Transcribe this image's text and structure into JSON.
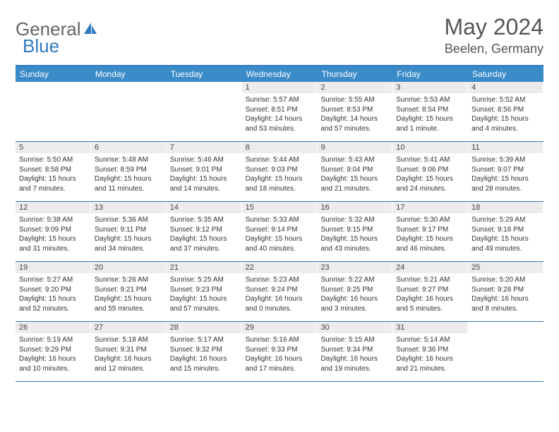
{
  "brand": {
    "part1": "General",
    "part2": "Blue"
  },
  "title": "May 2024",
  "location": "Beelen, Germany",
  "colors": {
    "header_bg": "#3b8bc9",
    "header_border": "#2f7abf",
    "daynum_bg": "#ececec",
    "text": "#333333"
  },
  "dow": [
    "Sunday",
    "Monday",
    "Tuesday",
    "Wednesday",
    "Thursday",
    "Friday",
    "Saturday"
  ],
  "weeks": [
    [
      {
        "n": "",
        "sr": "",
        "ss": "",
        "dl": ""
      },
      {
        "n": "",
        "sr": "",
        "ss": "",
        "dl": ""
      },
      {
        "n": "",
        "sr": "",
        "ss": "",
        "dl": ""
      },
      {
        "n": "1",
        "sr": "Sunrise: 5:57 AM",
        "ss": "Sunset: 8:51 PM",
        "dl": "Daylight: 14 hours and 53 minutes."
      },
      {
        "n": "2",
        "sr": "Sunrise: 5:55 AM",
        "ss": "Sunset: 8:53 PM",
        "dl": "Daylight: 14 hours and 57 minutes."
      },
      {
        "n": "3",
        "sr": "Sunrise: 5:53 AM",
        "ss": "Sunset: 8:54 PM",
        "dl": "Daylight: 15 hours and 1 minute."
      },
      {
        "n": "4",
        "sr": "Sunrise: 5:52 AM",
        "ss": "Sunset: 8:56 PM",
        "dl": "Daylight: 15 hours and 4 minutes."
      }
    ],
    [
      {
        "n": "5",
        "sr": "Sunrise: 5:50 AM",
        "ss": "Sunset: 8:58 PM",
        "dl": "Daylight: 15 hours and 7 minutes."
      },
      {
        "n": "6",
        "sr": "Sunrise: 5:48 AM",
        "ss": "Sunset: 8:59 PM",
        "dl": "Daylight: 15 hours and 11 minutes."
      },
      {
        "n": "7",
        "sr": "Sunrise: 5:46 AM",
        "ss": "Sunset: 9:01 PM",
        "dl": "Daylight: 15 hours and 14 minutes."
      },
      {
        "n": "8",
        "sr": "Sunrise: 5:44 AM",
        "ss": "Sunset: 9:03 PM",
        "dl": "Daylight: 15 hours and 18 minutes."
      },
      {
        "n": "9",
        "sr": "Sunrise: 5:43 AM",
        "ss": "Sunset: 9:04 PM",
        "dl": "Daylight: 15 hours and 21 minutes."
      },
      {
        "n": "10",
        "sr": "Sunrise: 5:41 AM",
        "ss": "Sunset: 9:06 PM",
        "dl": "Daylight: 15 hours and 24 minutes."
      },
      {
        "n": "11",
        "sr": "Sunrise: 5:39 AM",
        "ss": "Sunset: 9:07 PM",
        "dl": "Daylight: 15 hours and 28 minutes."
      }
    ],
    [
      {
        "n": "12",
        "sr": "Sunrise: 5:38 AM",
        "ss": "Sunset: 9:09 PM",
        "dl": "Daylight: 15 hours and 31 minutes."
      },
      {
        "n": "13",
        "sr": "Sunrise: 5:36 AM",
        "ss": "Sunset: 9:11 PM",
        "dl": "Daylight: 15 hours and 34 minutes."
      },
      {
        "n": "14",
        "sr": "Sunrise: 5:35 AM",
        "ss": "Sunset: 9:12 PM",
        "dl": "Daylight: 15 hours and 37 minutes."
      },
      {
        "n": "15",
        "sr": "Sunrise: 5:33 AM",
        "ss": "Sunset: 9:14 PM",
        "dl": "Daylight: 15 hours and 40 minutes."
      },
      {
        "n": "16",
        "sr": "Sunrise: 5:32 AM",
        "ss": "Sunset: 9:15 PM",
        "dl": "Daylight: 15 hours and 43 minutes."
      },
      {
        "n": "17",
        "sr": "Sunrise: 5:30 AM",
        "ss": "Sunset: 9:17 PM",
        "dl": "Daylight: 15 hours and 46 minutes."
      },
      {
        "n": "18",
        "sr": "Sunrise: 5:29 AM",
        "ss": "Sunset: 9:18 PM",
        "dl": "Daylight: 15 hours and 49 minutes."
      }
    ],
    [
      {
        "n": "19",
        "sr": "Sunrise: 5:27 AM",
        "ss": "Sunset: 9:20 PM",
        "dl": "Daylight: 15 hours and 52 minutes."
      },
      {
        "n": "20",
        "sr": "Sunrise: 5:26 AM",
        "ss": "Sunset: 9:21 PM",
        "dl": "Daylight: 15 hours and 55 minutes."
      },
      {
        "n": "21",
        "sr": "Sunrise: 5:25 AM",
        "ss": "Sunset: 9:23 PM",
        "dl": "Daylight: 15 hours and 57 minutes."
      },
      {
        "n": "22",
        "sr": "Sunrise: 5:23 AM",
        "ss": "Sunset: 9:24 PM",
        "dl": "Daylight: 16 hours and 0 minutes."
      },
      {
        "n": "23",
        "sr": "Sunrise: 5:22 AM",
        "ss": "Sunset: 9:25 PM",
        "dl": "Daylight: 16 hours and 3 minutes."
      },
      {
        "n": "24",
        "sr": "Sunrise: 5:21 AM",
        "ss": "Sunset: 9:27 PM",
        "dl": "Daylight: 16 hours and 5 minutes."
      },
      {
        "n": "25",
        "sr": "Sunrise: 5:20 AM",
        "ss": "Sunset: 9:28 PM",
        "dl": "Daylight: 16 hours and 8 minutes."
      }
    ],
    [
      {
        "n": "26",
        "sr": "Sunrise: 5:19 AM",
        "ss": "Sunset: 9:29 PM",
        "dl": "Daylight: 16 hours and 10 minutes."
      },
      {
        "n": "27",
        "sr": "Sunrise: 5:18 AM",
        "ss": "Sunset: 9:31 PM",
        "dl": "Daylight: 16 hours and 12 minutes."
      },
      {
        "n": "28",
        "sr": "Sunrise: 5:17 AM",
        "ss": "Sunset: 9:32 PM",
        "dl": "Daylight: 16 hours and 15 minutes."
      },
      {
        "n": "29",
        "sr": "Sunrise: 5:16 AM",
        "ss": "Sunset: 9:33 PM",
        "dl": "Daylight: 16 hours and 17 minutes."
      },
      {
        "n": "30",
        "sr": "Sunrise: 5:15 AM",
        "ss": "Sunset: 9:34 PM",
        "dl": "Daylight: 16 hours and 19 minutes."
      },
      {
        "n": "31",
        "sr": "Sunrise: 5:14 AM",
        "ss": "Sunset: 9:36 PM",
        "dl": "Daylight: 16 hours and 21 minutes."
      },
      {
        "n": "",
        "sr": "",
        "ss": "",
        "dl": ""
      }
    ]
  ]
}
